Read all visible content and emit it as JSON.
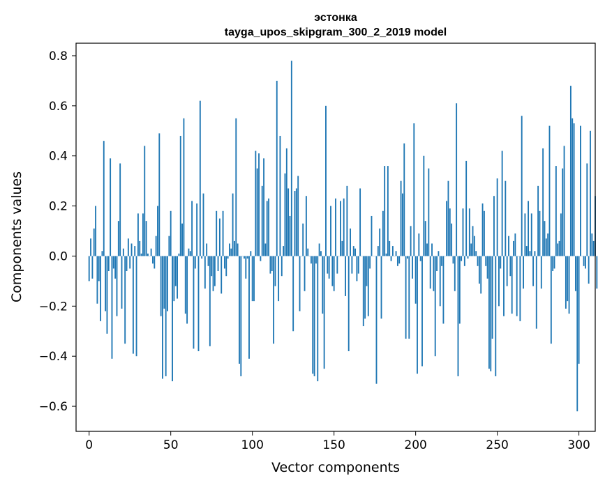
{
  "chart_data": {
    "type": "bar",
    "title_line1": "эстонка",
    "title_line2": "tayga_upos_skipgram_300_2_2019 model",
    "xlabel": "Vector components",
    "ylabel": "Components values",
    "xlim": [
      -8,
      310
    ],
    "ylim": [
      -0.7,
      0.85
    ],
    "xticks": [
      0,
      50,
      100,
      150,
      200,
      250,
      300
    ],
    "xtick_labels": [
      "0",
      "50",
      "100",
      "150",
      "200",
      "250",
      "300"
    ],
    "yticks": [
      -0.6,
      -0.4,
      -0.2,
      0.0,
      0.2,
      0.4,
      0.6,
      0.8
    ],
    "ytick_labels": [
      "−0.6",
      "−0.4",
      "−0.2",
      "0.0",
      "0.2",
      "0.4",
      "0.6",
      "0.8"
    ],
    "grid": false,
    "color": "#1f77b4",
    "values": [
      -0.1,
      0.07,
      -0.09,
      0.11,
      0.2,
      -0.19,
      -0.1,
      -0.26,
      0.02,
      0.46,
      -0.22,
      -0.31,
      -0.06,
      0.39,
      -0.41,
      -0.05,
      -0.09,
      -0.24,
      0.14,
      0.37,
      -0.21,
      0.03,
      -0.35,
      -0.06,
      0.07,
      -0.05,
      0.05,
      -0.39,
      0.04,
      -0.4,
      0.17,
      0.06,
      0.01,
      0.17,
      0.44,
      0.14,
      0.01,
      0.0,
      0.03,
      -0.03,
      -0.05,
      0.08,
      0.2,
      0.49,
      -0.24,
      -0.49,
      -0.21,
      -0.48,
      -0.22,
      0.08,
      0.18,
      -0.5,
      -0.18,
      -0.12,
      -0.17,
      0.01,
      0.48,
      0.13,
      0.55,
      -0.23,
      -0.27,
      0.03,
      0.02,
      0.22,
      -0.37,
      -0.05,
      0.21,
      -0.38,
      0.62,
      -0.01,
      0.25,
      -0.13,
      0.05,
      -0.04,
      -0.36,
      -0.08,
      -0.14,
      -0.12,
      0.18,
      -0.06,
      0.15,
      -0.15,
      0.18,
      -0.05,
      -0.08,
      -0.01,
      0.05,
      0.03,
      0.25,
      0.06,
      0.55,
      0.05,
      -0.43,
      -0.48,
      0.0,
      -0.01,
      -0.09,
      -0.01,
      -0.41,
      0.02,
      -0.18,
      -0.18,
      0.42,
      0.35,
      0.41,
      -0.02,
      0.28,
      0.39,
      0.05,
      0.22,
      0.23,
      -0.07,
      -0.06,
      -0.35,
      -0.12,
      0.7,
      -0.18,
      0.48,
      -0.08,
      0.04,
      0.33,
      0.43,
      0.27,
      0.16,
      0.78,
      -0.3,
      0.26,
      0.27,
      0.32,
      -0.22,
      0.0,
      0.13,
      -0.14,
      0.24,
      0.03,
      0.0,
      -0.03,
      -0.47,
      -0.48,
      -0.03,
      -0.5,
      0.05,
      0.02,
      -0.23,
      -0.45,
      0.6,
      -0.07,
      -0.09,
      0.2,
      -0.12,
      -0.14,
      0.23,
      -0.07,
      0.0,
      0.22,
      0.06,
      0.23,
      -0.16,
      0.28,
      -0.38,
      0.11,
      -0.07,
      0.04,
      0.03,
      -0.1,
      -0.07,
      0.27,
      0.0,
      -0.28,
      -0.25,
      -0.12,
      -0.24,
      -0.05,
      0.16,
      0.0,
      0.0,
      -0.51,
      0.04,
      0.11,
      -0.25,
      0.18,
      0.36,
      0.01,
      0.36,
      0.06,
      -0.02,
      0.04,
      0.0,
      0.02,
      -0.04,
      -0.03,
      0.3,
      0.25,
      0.45,
      -0.33,
      -0.01,
      -0.33,
      0.12,
      -0.09,
      0.53,
      -0.19,
      -0.47,
      0.09,
      -0.02,
      -0.44,
      0.4,
      0.14,
      0.05,
      0.35,
      -0.13,
      0.05,
      -0.14,
      -0.4,
      -0.06,
      0.02,
      -0.2,
      -0.04,
      -0.27,
      0.0,
      0.22,
      0.3,
      0.19,
      0.13,
      -0.03,
      -0.14,
      0.61,
      -0.48,
      -0.27,
      -0.02,
      0.19,
      -0.04,
      0.38,
      -0.01,
      0.19,
      0.05,
      0.12,
      0.08,
      0.02,
      -0.04,
      -0.11,
      -0.15,
      0.21,
      0.18,
      -0.04,
      -0.09,
      -0.45,
      -0.46,
      -0.33,
      0.24,
      -0.48,
      0.31,
      -0.2,
      -0.05,
      0.42,
      -0.24,
      0.3,
      -0.12,
      0.08,
      -0.08,
      -0.23,
      0.06,
      0.09,
      -0.24,
      0.0,
      -0.26,
      0.56,
      -0.13,
      0.17,
      0.04,
      0.22,
      0.02,
      0.17,
      -0.12,
      0.02,
      -0.29,
      0.28,
      0.18,
      -0.13,
      0.43,
      0.14,
      0.07,
      0.09,
      0.52,
      -0.35,
      -0.06,
      -0.05,
      0.36,
      0.05,
      0.06,
      0.17,
      0.35,
      0.44,
      -0.21,
      -0.18,
      -0.23,
      0.68,
      0.55,
      0.53,
      -0.14,
      -0.62,
      -0.43,
      0.52,
      0.0,
      -0.04,
      -0.05,
      0.37,
      -0.11,
      0.5,
      0.09,
      0.06,
      0.24,
      -0.13
    ]
  }
}
